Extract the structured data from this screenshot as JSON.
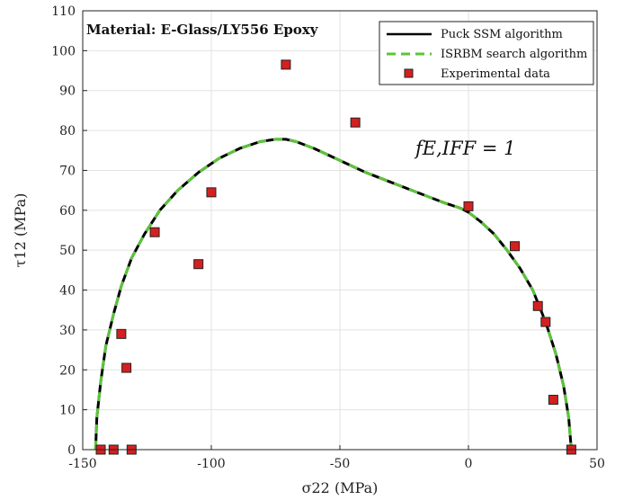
{
  "chart_data": {
    "type": "line",
    "title": "",
    "annotation": "Material: E-Glass/LY556 Epoxy",
    "curve_label": "f_{E,IFF} = 1",
    "curve_label_text": "fE,IFF = 1",
    "xlabel": "σ22 (MPa)",
    "ylabel": "τ12 (MPa)",
    "xlim": [
      -150,
      50
    ],
    "ylim": [
      0,
      110
    ],
    "xticks": [
      -150,
      -100,
      -50,
      0,
      50
    ],
    "yticks": [
      0,
      10,
      20,
      30,
      40,
      50,
      60,
      70,
      80,
      90,
      100,
      110
    ],
    "grid": true,
    "legend_position": "top-right",
    "colors": {
      "puck": "#000000",
      "isrbm": "#5cc43a",
      "experimental": "#d42020"
    },
    "series": [
      {
        "name": "Puck SSM algorithm",
        "style": "solid",
        "x": [
          -145,
          -144.5,
          -143,
          -141,
          -138,
          -135,
          -131,
          -126,
          -120,
          -113,
          -105,
          -97,
          -89,
          -81,
          -75,
          -71,
          -67,
          -60,
          -50,
          -40,
          -30,
          -20,
          -10,
          -3,
          0,
          5,
          10,
          15,
          20,
          25,
          30,
          34,
          37,
          39,
          40
        ],
        "y": [
          0,
          8,
          17,
          26,
          34,
          41,
          48,
          54,
          60,
          65,
          69.5,
          73,
          75.5,
          77.2,
          77.8,
          77.8,
          77.2,
          75.5,
          72.5,
          69.5,
          67,
          64.5,
          62,
          60.5,
          59.5,
          57,
          54,
          50,
          45.5,
          40,
          32,
          24,
          16,
          8,
          0
        ]
      },
      {
        "name": "ISRBM search algorithm",
        "style": "dashed",
        "x": [
          -145,
          -144.5,
          -143,
          -141,
          -138,
          -135,
          -131,
          -126,
          -120,
          -113,
          -105,
          -97,
          -89,
          -81,
          -75,
          -71,
          -67,
          -60,
          -50,
          -40,
          -30,
          -20,
          -10,
          -3,
          0,
          5,
          10,
          15,
          20,
          25,
          30,
          34,
          37,
          39,
          40
        ],
        "y": [
          0,
          8,
          17,
          26,
          34,
          41,
          48,
          54,
          60,
          65,
          69.5,
          73,
          75.5,
          77.2,
          77.8,
          77.8,
          77.2,
          75.5,
          72.5,
          69.5,
          67,
          64.5,
          62,
          60.5,
          59.5,
          57,
          54,
          50,
          45.5,
          40,
          32,
          24,
          16,
          8,
          0
        ]
      },
      {
        "name": "Experimental data",
        "style": "markers",
        "x": [
          -143,
          -138,
          -131,
          -135,
          -133,
          -122,
          -105,
          -100,
          -71,
          -44,
          0,
          18,
          27,
          30,
          33,
          40
        ],
        "y": [
          0,
          0,
          0,
          29,
          20.5,
          54.5,
          46.5,
          64.5,
          96.5,
          82,
          61,
          51,
          36,
          32,
          12.5,
          0
        ]
      }
    ]
  }
}
